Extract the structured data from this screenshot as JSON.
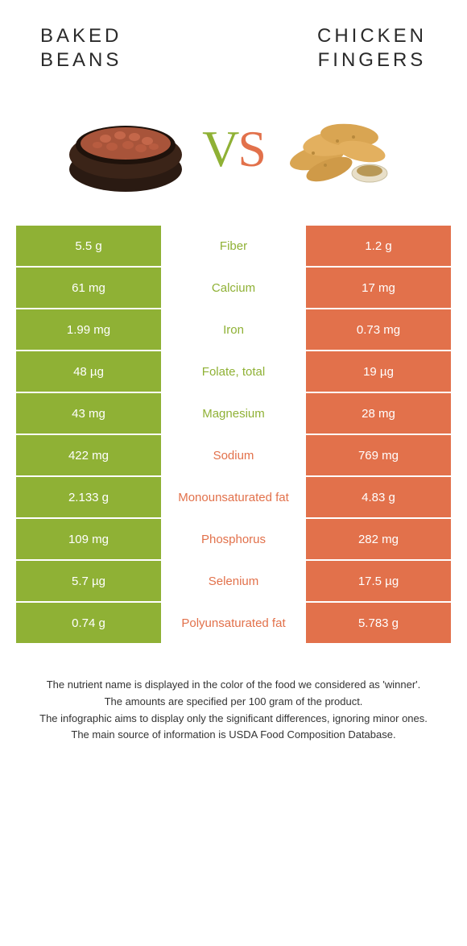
{
  "colors": {
    "left": "#8fb135",
    "right": "#e2714b",
    "text": "#333333",
    "bg": "#ffffff"
  },
  "foods": {
    "left": {
      "title_line1": "BAKED",
      "title_line2": "BEANS"
    },
    "right": {
      "title_line1": "CHICKEN",
      "title_line2": "FINGERS"
    }
  },
  "vs": {
    "v": "V",
    "s": "S"
  },
  "rows": [
    {
      "left": "5.5 g",
      "label": "Fiber",
      "right": "1.2 g",
      "winner": "left"
    },
    {
      "left": "61 mg",
      "label": "Calcium",
      "right": "17 mg",
      "winner": "left"
    },
    {
      "left": "1.99 mg",
      "label": "Iron",
      "right": "0.73 mg",
      "winner": "left"
    },
    {
      "left": "48 µg",
      "label": "Folate, total",
      "right": "19 µg",
      "winner": "left"
    },
    {
      "left": "43 mg",
      "label": "Magnesium",
      "right": "28 mg",
      "winner": "left"
    },
    {
      "left": "422 mg",
      "label": "Sodium",
      "right": "769 mg",
      "winner": "right"
    },
    {
      "left": "2.133 g",
      "label": "Monounsaturated fat",
      "right": "4.83 g",
      "winner": "right"
    },
    {
      "left": "109 mg",
      "label": "Phosphorus",
      "right": "282 mg",
      "winner": "right"
    },
    {
      "left": "5.7 µg",
      "label": "Selenium",
      "right": "17.5 µg",
      "winner": "right"
    },
    {
      "left": "0.74 g",
      "label": "Polyunsaturated fat",
      "right": "5.783 g",
      "winner": "right"
    }
  ],
  "footnotes": [
    "The nutrient name is displayed in the color of the food we considered as 'winner'.",
    "The amounts are specified per 100 gram of the product.",
    "The infographic aims to display only the significant differences, ignoring minor ones.",
    "The main source of information is USDA Food Composition Database."
  ]
}
